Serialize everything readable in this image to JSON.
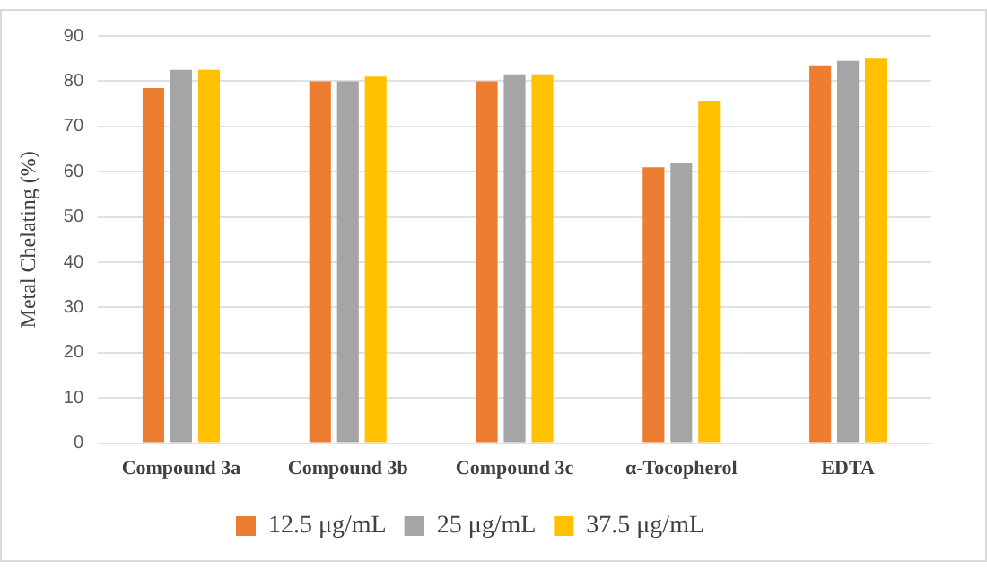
{
  "chart_data": {
    "type": "bar",
    "ylabel": "Metal Chelating (%)",
    "categories": [
      "Compound 3a",
      "Compound 3b",
      "Compound 3c",
      "α-Tocopherol",
      "EDTA"
    ],
    "series": [
      {
        "name": "12.5 μg/mL",
        "color": "#ed7d31",
        "values": [
          78.5,
          80,
          80,
          61,
          83.5
        ]
      },
      {
        "name": "25 μg/mL",
        "color": "#a5a5a5",
        "values": [
          82.5,
          80,
          81.5,
          62,
          84.5
        ]
      },
      {
        "name": "37.5 μg/mL",
        "color": "#ffc000",
        "values": [
          82.5,
          81,
          81.5,
          75.5,
          85
        ]
      }
    ],
    "ylim": [
      0,
      90
    ],
    "yticks": [
      0,
      10,
      20,
      30,
      40,
      50,
      60,
      70,
      80,
      90
    ],
    "grid": "y",
    "legend": "bottom"
  }
}
